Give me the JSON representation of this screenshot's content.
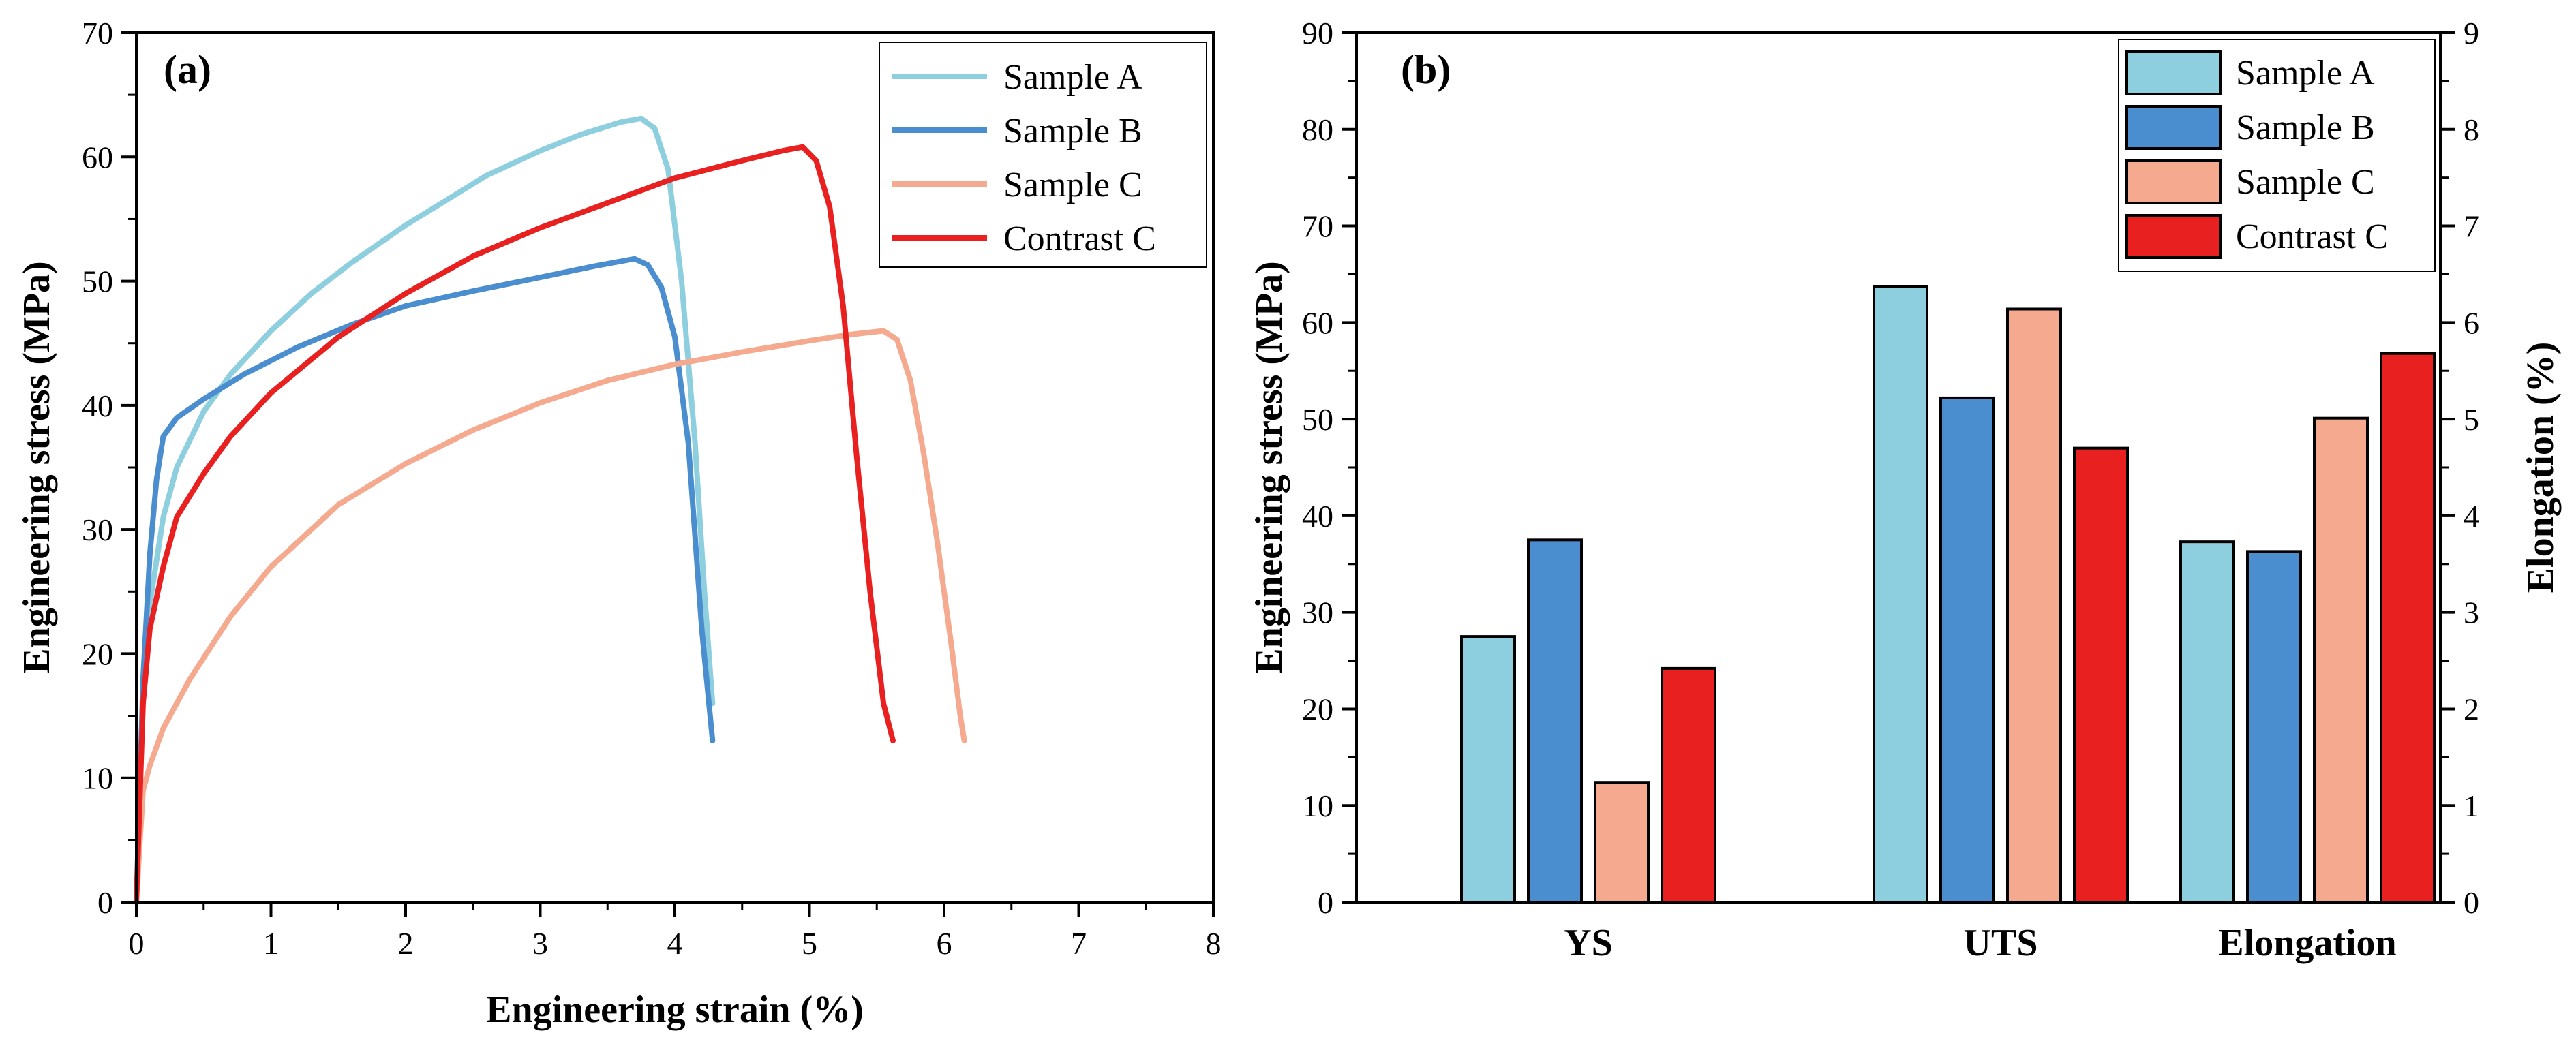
{
  "chart_data": [
    {
      "type": "line",
      "panel_label": "(a)",
      "xlabel": "Engineering strain (%)",
      "ylabel": "Engineering stress (MPa)",
      "xlim": [
        0,
        8
      ],
      "ylim": [
        0,
        70
      ],
      "xticks": [
        0,
        1,
        2,
        3,
        4,
        5,
        6,
        7,
        8
      ],
      "yticks": [
        0,
        10,
        20,
        30,
        40,
        50,
        60,
        70
      ],
      "legend_position": "top-right",
      "series": [
        {
          "name": "Sample A",
          "color": "#8ECFDF",
          "x": [
            0,
            0.05,
            0.1,
            0.2,
            0.3,
            0.5,
            0.7,
            1.0,
            1.3,
            1.6,
            2.0,
            2.3,
            2.6,
            3.0,
            3.3,
            3.6,
            3.75,
            3.85,
            3.95,
            4.05,
            4.15,
            4.22,
            4.28
          ],
          "y": [
            0,
            17,
            24,
            31,
            35,
            39.5,
            42.5,
            46,
            49,
            51.5,
            54.5,
            56.5,
            58.5,
            60.5,
            61.8,
            62.8,
            63.1,
            62.3,
            59,
            50,
            37,
            25,
            16
          ]
        },
        {
          "name": "Sample B",
          "color": "#4A8ECF",
          "x": [
            0,
            0.05,
            0.1,
            0.15,
            0.2,
            0.3,
            0.5,
            0.8,
            1.2,
            1.6,
            2.0,
            2.5,
            3.0,
            3.4,
            3.7,
            3.8,
            3.9,
            4.0,
            4.1,
            4.2,
            4.28
          ],
          "y": [
            0,
            18,
            28,
            34,
            37.5,
            39,
            40.5,
            42.5,
            44.7,
            46.5,
            48,
            49.2,
            50.3,
            51.2,
            51.8,
            51.3,
            49.5,
            45.5,
            37,
            22,
            13
          ]
        },
        {
          "name": "Sample C",
          "color": "#F5A98E",
          "x": [
            0,
            0.05,
            0.1,
            0.2,
            0.4,
            0.7,
            1.0,
            1.5,
            2.0,
            2.5,
            3.0,
            3.5,
            4.0,
            4.5,
            5.0,
            5.3,
            5.55,
            5.65,
            5.75,
            5.85,
            5.95,
            6.05,
            6.12,
            6.15
          ],
          "y": [
            0,
            9,
            11,
            14,
            18,
            23,
            27,
            32,
            35.3,
            38,
            40.2,
            42,
            43.3,
            44.3,
            45.2,
            45.7,
            46,
            45.3,
            42,
            36,
            29,
            21,
            15,
            13
          ]
        },
        {
          "name": "Contrast C",
          "color": "#E82020",
          "x": [
            0,
            0.05,
            0.1,
            0.2,
            0.3,
            0.5,
            0.7,
            1.0,
            1.5,
            2.0,
            2.5,
            3.0,
            3.5,
            4.0,
            4.5,
            4.8,
            4.95,
            5.05,
            5.15,
            5.25,
            5.35,
            5.45,
            5.55,
            5.62
          ],
          "y": [
            0,
            16,
            22,
            27,
            31,
            34.5,
            37.5,
            41,
            45.5,
            49,
            52,
            54.3,
            56.3,
            58.3,
            59.7,
            60.5,
            60.8,
            59.7,
            56,
            48,
            36,
            25,
            16,
            13
          ]
        }
      ]
    },
    {
      "type": "bar",
      "panel_label": "(b)",
      "categories": [
        "YS",
        "UTS",
        "Elongation"
      ],
      "ylabel": "Engineering stress (MPa)",
      "y2label": "Elongation (%)",
      "ylim": [
        0,
        90
      ],
      "y2lim": [
        0,
        9
      ],
      "yticks": [
        0,
        10,
        20,
        30,
        40,
        50,
        60,
        70,
        80,
        90
      ],
      "y2ticks": [
        0,
        1,
        2,
        3,
        4,
        5,
        6,
        7,
        8,
        9
      ],
      "legend_position": "top-right",
      "series": [
        {
          "name": "Sample A",
          "color": "#8ECFDF",
          "values": [
            27.5,
            63.7,
            37.3
          ]
        },
        {
          "name": "Sample B",
          "color": "#4A8ECF",
          "values": [
            37.5,
            52.2,
            36.3
          ]
        },
        {
          "name": "Sample C",
          "color": "#F5A98E",
          "values": [
            12.4,
            61.4,
            50.1
          ]
        },
        {
          "name": "Contrast C",
          "color": "#E82020",
          "values": [
            24.2,
            47.0,
            56.8
          ]
        }
      ]
    }
  ]
}
